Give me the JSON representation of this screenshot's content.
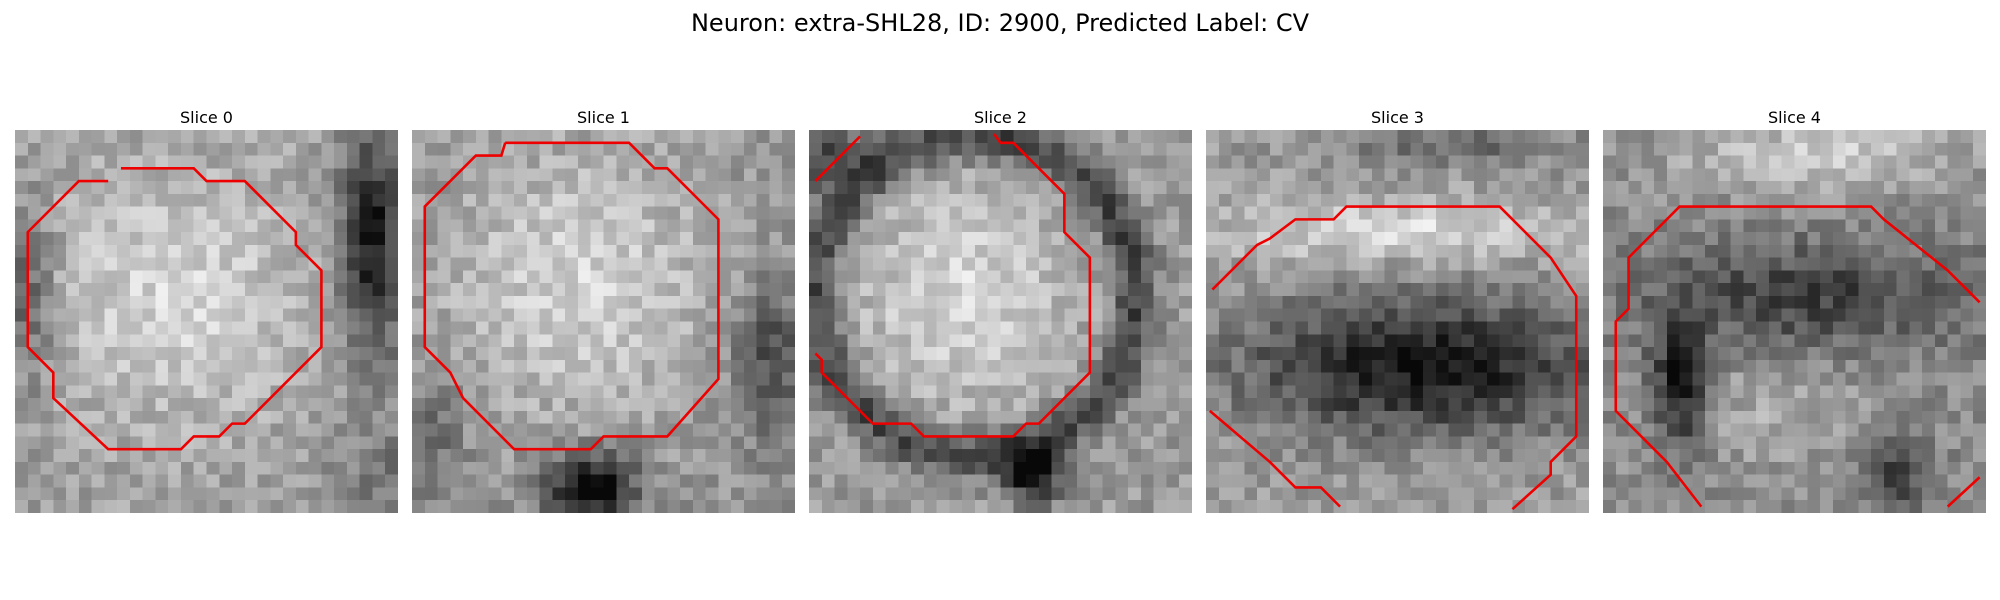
{
  "figure": {
    "title": "Neuron: extra-SHL28, ID: 2900, Predicted Label: CV"
  },
  "slices": [
    {
      "label": "Slice 0",
      "pattern": "bright-soma-dark-right"
    },
    {
      "label": "Slice 1",
      "pattern": "bright-soma-dark-bottom"
    },
    {
      "label": "Slice 2",
      "pattern": "bright-soma-dark-ring"
    },
    {
      "label": "Slice 3",
      "pattern": "bright-band-dark-blob"
    },
    {
      "label": "Slice 4",
      "pattern": "mixed-dark-left"
    }
  ],
  "colors": {
    "contour": "#ee0000",
    "background": "#ffffff"
  }
}
